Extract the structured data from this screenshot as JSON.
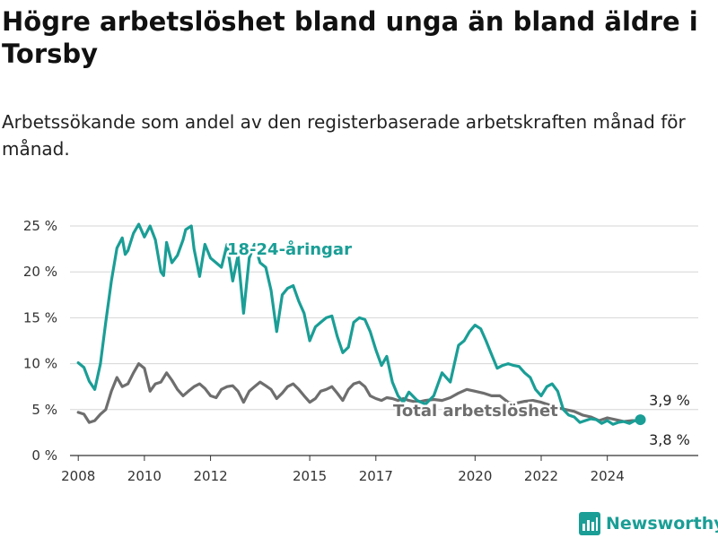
{
  "title": "Högre arbetslöshet bland unga än bland äldre i Torsby",
  "subtitle": "Arbetssökande som andel av den registerbaserade arbetskraften månad för månad.",
  "brand": {
    "name": "Newsworthy",
    "icon": "newsworthy-logo-icon",
    "color": "#1a9e96"
  },
  "chart_data": {
    "type": "line",
    "ylim": [
      0,
      25
    ],
    "xlim": [
      2007.75,
      2026.75
    ],
    "y_ticks": [
      0,
      5,
      10,
      15,
      20,
      25
    ],
    "y_tick_labels": [
      "0 %",
      "5 %",
      "10 %",
      "15 %",
      "20 %",
      "25 %"
    ],
    "x_ticks": [
      2008,
      2010,
      2012,
      2015,
      2017,
      2020,
      2022,
      2024
    ],
    "x_tick_labels": [
      "2008",
      "2010",
      "2012",
      "2015",
      "2017",
      "2020",
      "2022",
      "2024"
    ],
    "grid": "horizontal",
    "series": [
      {
        "name": "18-24-åringar",
        "color": "#1a9e96",
        "end_value_label": "3,9 %",
        "x": [
          2008.0,
          2008.17,
          2008.33,
          2008.5,
          2008.67,
          2008.83,
          2009.0,
          2009.17,
          2009.33,
          2009.42,
          2009.5,
          2009.67,
          2009.83,
          2010.0,
          2010.17,
          2010.33,
          2010.5,
          2010.58,
          2010.67,
          2010.83,
          2011.0,
          2011.17,
          2011.25,
          2011.42,
          2011.5,
          2011.67,
          2011.83,
          2012.0,
          2012.17,
          2012.33,
          2012.5,
          2012.67,
          2012.83,
          2013.0,
          2013.17,
          2013.33,
          2013.5,
          2013.67,
          2013.83,
          2014.0,
          2014.17,
          2014.33,
          2014.5,
          2014.67,
          2014.83,
          2015.0,
          2015.17,
          2015.33,
          2015.5,
          2015.67,
          2015.83,
          2016.0,
          2016.17,
          2016.33,
          2016.5,
          2016.67,
          2016.83,
          2017.0,
          2017.17,
          2017.33,
          2017.5,
          2017.67,
          2017.83,
          2018.0,
          2018.25,
          2018.5,
          2018.75,
          2019.0,
          2019.25,
          2019.5,
          2019.67,
          2019.83,
          2020.0,
          2020.17,
          2020.33,
          2020.5,
          2020.67,
          2020.83,
          2021.0,
          2021.17,
          2021.33,
          2021.5,
          2021.67,
          2021.83,
          2022.0,
          2022.17,
          2022.33,
          2022.5,
          2022.67,
          2022.83,
          2023.0,
          2023.17,
          2023.33,
          2023.5,
          2023.67,
          2023.83,
          2024.0,
          2024.17,
          2024.33,
          2024.5,
          2024.67,
          2024.83,
          2025.0
        ],
        "values": [
          10.1,
          9.6,
          8.1,
          7.2,
          10.0,
          14.5,
          19.0,
          22.6,
          23.7,
          21.9,
          22.3,
          24.2,
          25.2,
          23.8,
          25.0,
          23.5,
          20.0,
          19.6,
          23.2,
          21.0,
          21.8,
          23.5,
          24.6,
          25.0,
          22.5,
          19.5,
          23.0,
          21.5,
          21.0,
          20.5,
          23.0,
          19.0,
          21.8,
          15.5,
          21.5,
          23.0,
          21.0,
          20.5,
          18.0,
          13.5,
          17.5,
          18.2,
          18.5,
          16.8,
          15.5,
          12.5,
          14.0,
          14.5,
          15.0,
          15.2,
          13.0,
          11.2,
          11.8,
          14.5,
          15.0,
          14.8,
          13.5,
          11.5,
          9.8,
          10.8,
          8.0,
          6.5,
          5.8,
          6.9,
          6.0,
          5.6,
          6.5,
          9.0,
          8.0,
          12.0,
          12.5,
          13.5,
          14.2,
          13.8,
          12.5,
          11.0,
          9.5,
          9.8,
          10.0,
          9.8,
          9.7,
          9.0,
          8.5,
          7.2,
          6.5,
          7.5,
          7.8,
          7.0,
          5.0,
          4.4,
          4.2,
          3.6,
          3.8,
          4.0,
          3.9,
          3.5,
          3.8,
          3.4,
          3.6,
          3.7,
          3.5,
          3.8,
          3.9
        ]
      },
      {
        "name": "Total arbetslöshet",
        "color": "#6e6e6e",
        "end_value_label": "3,8 %",
        "x": [
          2008.0,
          2008.17,
          2008.33,
          2008.5,
          2008.67,
          2008.83,
          2009.0,
          2009.17,
          2009.33,
          2009.5,
          2009.67,
          2009.83,
          2010.0,
          2010.17,
          2010.33,
          2010.5,
          2010.67,
          2010.83,
          2011.0,
          2011.17,
          2011.33,
          2011.5,
          2011.67,
          2011.83,
          2012.0,
          2012.17,
          2012.33,
          2012.5,
          2012.67,
          2012.83,
          2013.0,
          2013.17,
          2013.33,
          2013.5,
          2013.67,
          2013.83,
          2014.0,
          2014.17,
          2014.33,
          2014.5,
          2014.67,
          2014.83,
          2015.0,
          2015.17,
          2015.33,
          2015.5,
          2015.67,
          2015.83,
          2016.0,
          2016.17,
          2016.33,
          2016.5,
          2016.67,
          2016.83,
          2017.0,
          2017.17,
          2017.33,
          2017.5,
          2017.67,
          2017.83,
          2018.0,
          2018.25,
          2018.5,
          2018.75,
          2019.0,
          2019.25,
          2019.5,
          2019.75,
          2020.0,
          2020.25,
          2020.5,
          2020.75,
          2021.0,
          2021.25,
          2021.5,
          2021.75,
          2022.0,
          2022.25,
          2022.5,
          2022.75,
          2023.0,
          2023.25,
          2023.5,
          2023.75,
          2024.0,
          2024.25,
          2024.5,
          2024.75,
          2025.0
        ],
        "values": [
          4.7,
          4.5,
          3.6,
          3.8,
          4.5,
          5.0,
          7.0,
          8.5,
          7.5,
          7.8,
          9.0,
          10.0,
          9.5,
          7.0,
          7.8,
          8.0,
          9.0,
          8.2,
          7.2,
          6.5,
          7.0,
          7.5,
          7.8,
          7.3,
          6.5,
          6.3,
          7.2,
          7.5,
          7.6,
          7.0,
          5.8,
          7.0,
          7.5,
          8.0,
          7.6,
          7.2,
          6.2,
          6.8,
          7.5,
          7.8,
          7.2,
          6.5,
          5.8,
          6.2,
          7.0,
          7.2,
          7.5,
          6.8,
          6.0,
          7.2,
          7.8,
          8.0,
          7.5,
          6.5,
          6.2,
          6.0,
          6.3,
          6.2,
          6.0,
          6.2,
          6.0,
          5.8,
          6.0,
          6.1,
          6.0,
          6.3,
          6.8,
          7.2,
          7.0,
          6.8,
          6.5,
          6.5,
          5.8,
          5.7,
          5.9,
          6.0,
          5.8,
          5.5,
          5.2,
          5.0,
          4.8,
          4.4,
          4.2,
          3.8,
          4.1,
          3.9,
          3.7,
          3.8,
          3.8
        ]
      }
    ]
  }
}
